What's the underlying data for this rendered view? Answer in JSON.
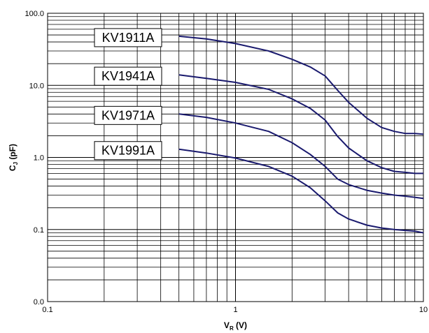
{
  "chart_data": {
    "type": "line",
    "xscale": "log",
    "yscale": "log",
    "xlim": [
      0.1,
      10
    ],
    "ylim": [
      0.0,
      100.0
    ],
    "grid": true,
    "xlabel": "V",
    "xlabel_sub": "R",
    "xlabel_unit": " (V)",
    "ylabel": "C",
    "ylabel_sub": "J",
    "ylabel_unit": " (pF)",
    "x_ticks": [
      {
        "value": 0.1,
        "label": "0.1"
      },
      {
        "value": 1,
        "label": "1"
      },
      {
        "value": 10,
        "label": "10"
      }
    ],
    "y_ticks": [
      {
        "value": 0.01,
        "label": "0.0"
      },
      {
        "value": 0.1,
        "label": "0.1"
      },
      {
        "value": 1,
        "label": "1.0"
      },
      {
        "value": 10,
        "label": "10.0"
      },
      {
        "value": 100,
        "label": "100.0"
      }
    ],
    "series": [
      {
        "name": "KV1911A",
        "color": "#1a1a6e",
        "x": [
          0.5,
          0.7,
          1,
          1.5,
          2,
          2.5,
          3,
          3.5,
          4,
          5,
          6,
          7,
          8,
          9,
          10
        ],
        "y": [
          48,
          44,
          38,
          30,
          23,
          18,
          13.5,
          8.5,
          5.8,
          3.5,
          2.6,
          2.3,
          2.15,
          2.15,
          2.1
        ]
      },
      {
        "name": "KV1941A",
        "color": "#1a1a6e",
        "x": [
          0.5,
          0.7,
          1,
          1.5,
          2,
          2.5,
          3,
          3.5,
          4,
          5,
          6,
          7,
          8,
          9,
          10
        ],
        "y": [
          14,
          12.5,
          11,
          8.8,
          6.5,
          4.8,
          3.3,
          1.95,
          1.35,
          0.9,
          0.72,
          0.64,
          0.62,
          0.6,
          0.6
        ]
      },
      {
        "name": "KV1971A",
        "color": "#1a1a6e",
        "x": [
          0.5,
          0.7,
          1,
          1.5,
          2,
          2.5,
          3,
          3.5,
          4,
          5,
          6,
          7,
          8,
          9,
          10
        ],
        "y": [
          4,
          3.6,
          3.0,
          2.3,
          1.6,
          1.1,
          0.75,
          0.5,
          0.42,
          0.35,
          0.32,
          0.3,
          0.29,
          0.28,
          0.27
        ]
      },
      {
        "name": "KV1991A",
        "color": "#1a1a6e",
        "x": [
          0.5,
          0.7,
          1,
          1.5,
          2,
          2.5,
          3,
          3.5,
          4,
          5,
          6,
          7,
          8,
          9,
          10
        ],
        "y": [
          1.3,
          1.15,
          0.98,
          0.75,
          0.55,
          0.38,
          0.25,
          0.17,
          0.14,
          0.115,
          0.105,
          0.1,
          0.097,
          0.095,
          0.09
        ]
      }
    ]
  }
}
